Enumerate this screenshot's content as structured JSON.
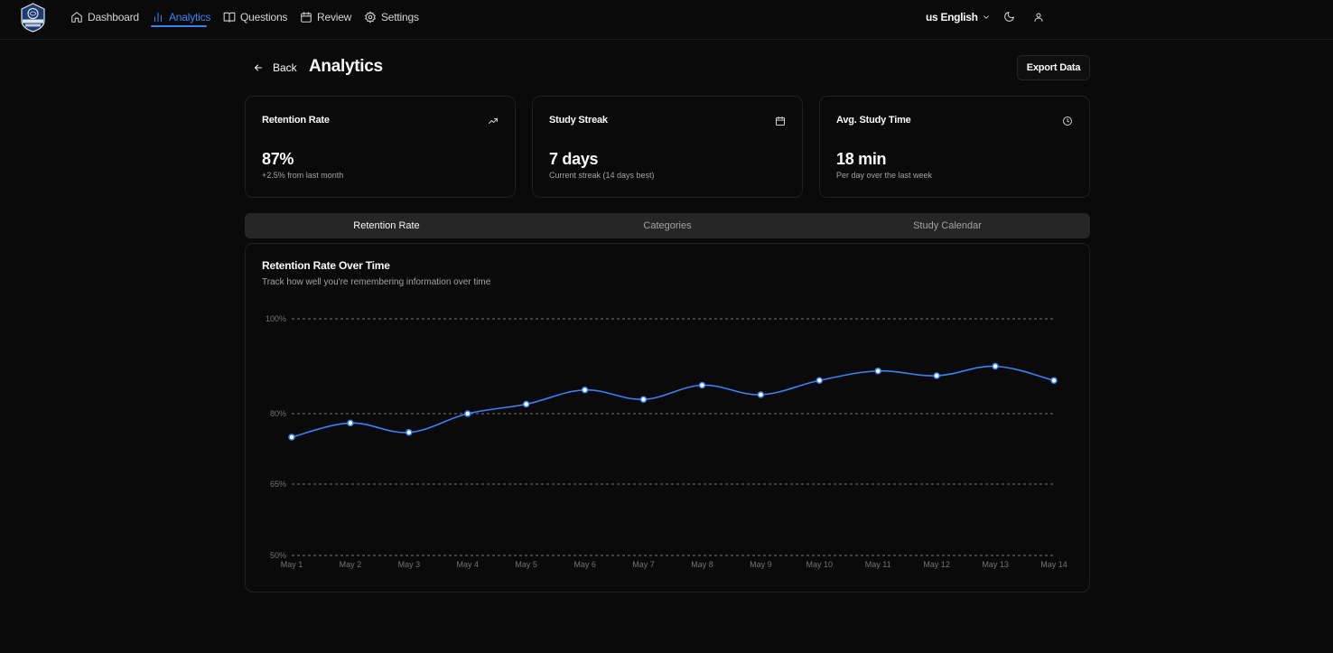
{
  "nav": {
    "logo_icon": "recall-master-logo-icon",
    "items": [
      {
        "label": "Dashboard",
        "icon": "home-icon"
      },
      {
        "label": "Analytics",
        "icon": "bar-chart-icon",
        "active": true
      },
      {
        "label": "Questions",
        "icon": "book-open-icon"
      },
      {
        "label": "Review",
        "icon": "calendar-icon"
      },
      {
        "label": "Settings",
        "icon": "gear-icon"
      }
    ],
    "language": "us English",
    "accent_color": "#3b82f6"
  },
  "header": {
    "back_label": "Back",
    "title": "Analytics",
    "export_label": "Export Data"
  },
  "stats": [
    {
      "title": "Retention Rate",
      "value": "87%",
      "sub": "+2.5% from last month",
      "icon": "trending-up-icon"
    },
    {
      "title": "Study Streak",
      "value": "7 days",
      "sub": "Current streak (14 days best)",
      "icon": "calendar-icon"
    },
    {
      "title": "Avg. Study Time",
      "value": "18 min",
      "sub": "Per day over the last week",
      "icon": "clock-icon"
    }
  ],
  "tabs": [
    {
      "label": "Retention Rate",
      "active": true
    },
    {
      "label": "Categories"
    },
    {
      "label": "Study Calendar"
    }
  ],
  "chart": {
    "title": "Retention Rate Over Time",
    "description": "Track how well you're remembering information over time"
  },
  "chart_data": {
    "type": "line",
    "x": [
      "May 1",
      "May 2",
      "May 3",
      "May 4",
      "May 5",
      "May 6",
      "May 7",
      "May 8",
      "May 9",
      "May 10",
      "May 11",
      "May 12",
      "May 13",
      "May 14"
    ],
    "series": [
      {
        "values": [
          75,
          78,
          76,
          80,
          82,
          85,
          83,
          86,
          84,
          87,
          89,
          88,
          90,
          87
        ],
        "color": "#3b82f6"
      }
    ],
    "y_ticks": [
      "100%",
      "80%",
      "65%",
      "50%"
    ],
    "ylim": [
      50,
      100
    ],
    "grid": true,
    "legend": "none"
  }
}
